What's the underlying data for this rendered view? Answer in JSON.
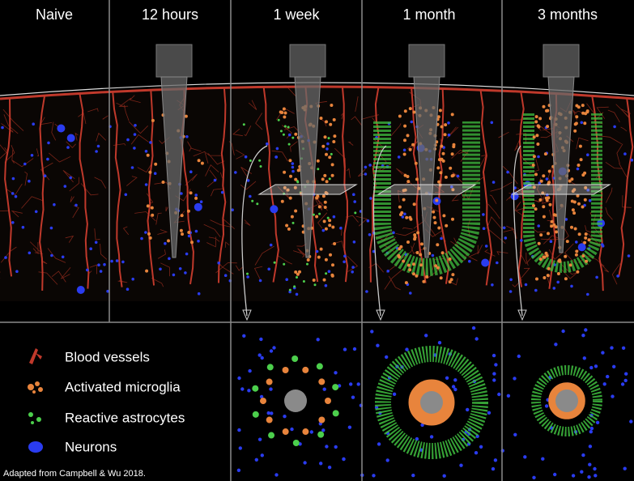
{
  "columns": [
    "Naive",
    "12 hours",
    "1 week",
    "1 month",
    "3 months"
  ],
  "legend": [
    "Blood vessels",
    "Activated microglia",
    "Reactive astrocytes",
    "Neurons"
  ],
  "caption": "Adapted from Campbell & Wu 2018."
}
